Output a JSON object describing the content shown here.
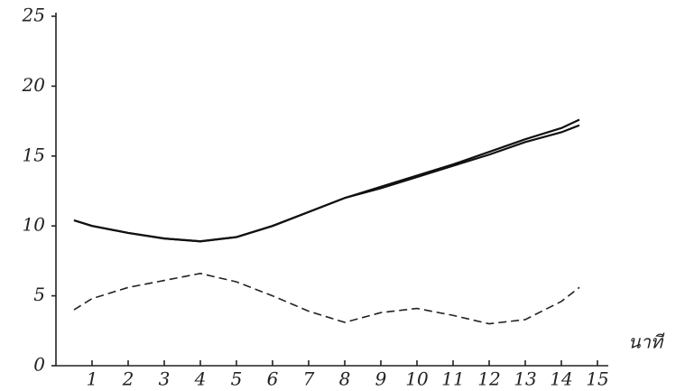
{
  "chart_data": {
    "type": "line",
    "x_label": "นาที",
    "x": [
      0.5,
      1,
      2,
      3,
      4,
      5,
      6,
      7,
      8,
      9,
      10,
      11,
      12,
      13,
      14,
      14.5
    ],
    "series": [
      {
        "color": "#111111",
        "dashed": false,
        "values": [
          10.4,
          10.0,
          9.5,
          9.1,
          8.9,
          9.2,
          10.0,
          11.0,
          12.0,
          12.8,
          13.6,
          14.4,
          15.3,
          16.2,
          17.0,
          17.6
        ]
      },
      {
        "color": "#111111",
        "dashed": false,
        "values": [
          10.4,
          10.0,
          9.5,
          9.1,
          8.9,
          9.2,
          10.0,
          11.0,
          12.0,
          12.7,
          13.5,
          14.3,
          15.1,
          16.0,
          16.7,
          17.2
        ]
      },
      {
        "color": "#222222",
        "dashed": true,
        "values": [
          4.0,
          4.8,
          5.6,
          6.1,
          6.6,
          6.0,
          5.0,
          3.9,
          3.1,
          3.8,
          4.1,
          3.6,
          3.0,
          3.3,
          4.6,
          5.6
        ]
      }
    ],
    "xlim": [
      0,
      15
    ],
    "ylim": [
      0,
      25
    ],
    "xticks": [
      1,
      2,
      3,
      4,
      5,
      6,
      7,
      8,
      9,
      10,
      11,
      12,
      13,
      14,
      15
    ],
    "yticks": [
      0,
      5,
      10,
      15,
      20,
      25
    ],
    "grid": false
  }
}
